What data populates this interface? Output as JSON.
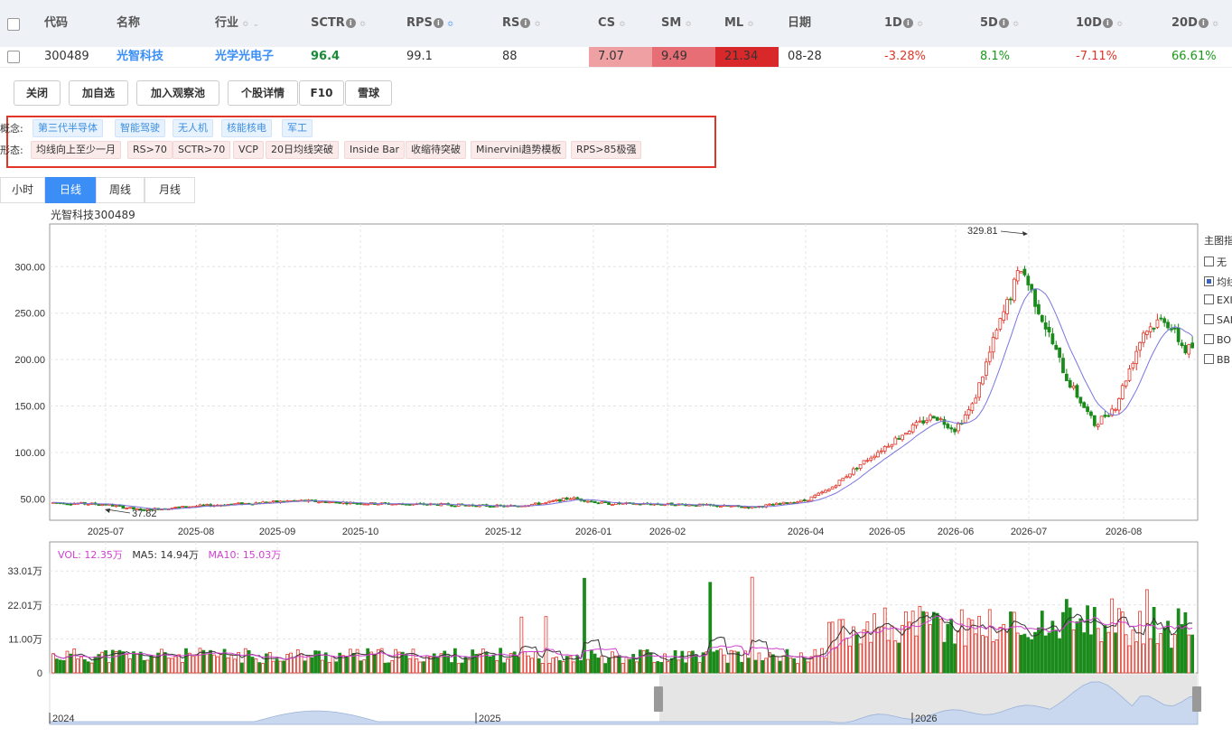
{
  "header": {
    "code": "代码",
    "name": "名称",
    "industry": "行业",
    "sctr": "SCTR",
    "rps": "RPS",
    "rs": "RS",
    "cs": "CS",
    "sm": "SM",
    "ml": "ML",
    "date": "日期",
    "d1": "1D",
    "d5": "5D",
    "d10": "10D",
    "d20": "20D"
  },
  "stock": {
    "code": "300489",
    "name": "光智科技",
    "industry": "光学光电子",
    "sctr": "96.4",
    "rps": "99.1",
    "rs": "88",
    "cs": "7.07",
    "sm": "9.49",
    "ml": "21.34",
    "date": "08-28",
    "d1": "-3.28%",
    "d5": "8.1%",
    "d10": "-7.11%",
    "d20": "66.61%"
  },
  "colors": {
    "cs_bg": "#eea0a2",
    "sm_bg": "#e66e74",
    "ml_bg": "#d8282a",
    "up": "#e0362a",
    "down": "#1a8a1a",
    "accent": "#3a8ef6"
  },
  "actions": [
    "关闭",
    "加自选",
    "加入观察池",
    "个股详情",
    "F10",
    "雪球"
  ],
  "concept_label": "概念:",
  "concepts": [
    "第三代半导体",
    "智能驾驶",
    "无人机",
    "核能核电",
    "军工"
  ],
  "pattern_label": "形态:",
  "patterns": [
    "均线向上至少一月",
    "RS>70",
    "SCTR>70",
    "VCP",
    "20日均线突破",
    "Inside Bar",
    "收缩待突破",
    "Minervini趋势模板",
    "RPS>85极强"
  ],
  "tabs": [
    "小时",
    "日线",
    "周线",
    "月线"
  ],
  "active_tab": "日线",
  "chart_title": "光智科技300489",
  "indicator_panel": {
    "title": "主图指",
    "options": [
      "无",
      "均线",
      "EXI",
      "SAI",
      "BOI",
      "BB"
    ],
    "checked": "均线"
  },
  "vol_legend": {
    "vol": "VOL: 12.35万",
    "ma5": "MA5: 14.94万",
    "ma10": "MA10: 15.03万"
  },
  "chart_data": {
    "type": "candlestick",
    "title": "光智科技300489",
    "price_ticks": [
      "300.00",
      "250.00",
      "200.00",
      "150.00",
      "100.00",
      "50.00"
    ],
    "x_ticks": [
      "2025-07",
      "2025-08",
      "2025-09",
      "2025-10",
      "2025-12",
      "2026-01",
      "2026-02",
      "2026-04",
      "2026-05",
      "2026-06",
      "2026-07",
      "2026-08"
    ],
    "annotations": [
      {
        "label": "329.81",
        "value": 329.81,
        "type": "high"
      },
      {
        "label": "37.82",
        "value": 37.82,
        "type": "low"
      }
    ],
    "price_series": [
      {
        "date": "2025-07",
        "close": 45
      },
      {
        "date": "2025-08",
        "close": 42
      },
      {
        "date": "2025-09",
        "close": 47
      },
      {
        "date": "2025-10",
        "close": 45
      },
      {
        "date": "2025-12",
        "close": 42
      },
      {
        "date": "2026-01",
        "close": 50
      },
      {
        "date": "2026-02",
        "close": 44
      },
      {
        "date": "2026-04",
        "close": 48
      },
      {
        "date": "2026-05",
        "close": 100
      },
      {
        "date": "2026-06",
        "close": 135
      },
      {
        "date": "2026-07",
        "close": 290
      },
      {
        "date": "2026-08",
        "close": 150
      },
      {
        "date": "2026-08-28",
        "close": 235
      }
    ],
    "volume_ticks": [
      "33.01万",
      "22.01万",
      "11.00万",
      "0"
    ],
    "navigator_labels": [
      "2024",
      "2025",
      "2026"
    ]
  }
}
